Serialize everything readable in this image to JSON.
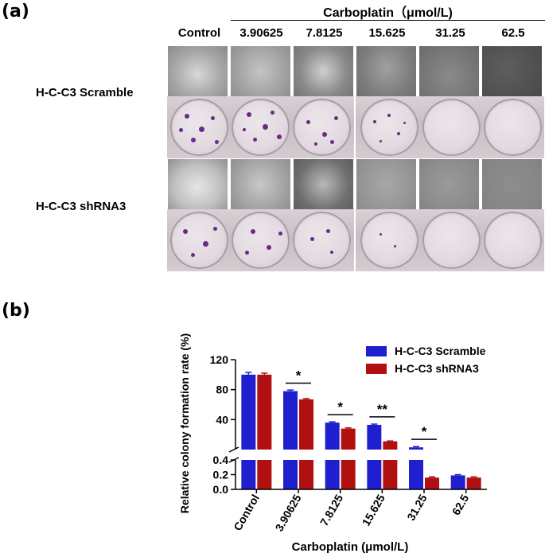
{
  "panel_a": {
    "label": "(a)",
    "drug_header": "Carboplatin（μmol/L)",
    "columns": [
      "Control",
      "3.90625",
      "7.8125",
      "15.625",
      "31.25",
      "62.5"
    ],
    "rows": [
      "H-C-C3 Scramble",
      "H-C-C3 shRNA3"
    ]
  },
  "panel_b": {
    "label": "(b)"
  },
  "chart_data": {
    "type": "bar",
    "ylabel": "Relative colony formation rate (%)",
    "xlabel": "Carboplatin (μmol/L)",
    "categories": [
      "Control",
      "3.90625",
      "7.8125",
      "15.625",
      "31.25",
      "62.5"
    ],
    "series": [
      {
        "name": "H-C-C3 Scramble",
        "color": "#1f1fcf",
        "values": [
          100,
          78,
          36,
          33,
          3,
          0.19
        ],
        "errors": [
          3,
          1.5,
          1,
          1,
          1,
          0.01
        ]
      },
      {
        "name": "H-C-C3 shRNA3",
        "color": "#b01010",
        "values": [
          100,
          67,
          28,
          11,
          0.16,
          0.16
        ],
        "errors": [
          2,
          1,
          1,
          0.5,
          0.01,
          0.01
        ]
      }
    ],
    "y_axis_break": true,
    "ylim_lower": [
      0,
      0.4
    ],
    "yticks_lower": [
      "0.0",
      "0.2",
      "0.4"
    ],
    "ylim_upper": [
      0,
      120
    ],
    "yticks_upper": [
      "40",
      "80",
      "120"
    ],
    "significance": [
      "",
      "*",
      "*",
      "**",
      "*",
      ""
    ],
    "legend_position": "top-right"
  }
}
